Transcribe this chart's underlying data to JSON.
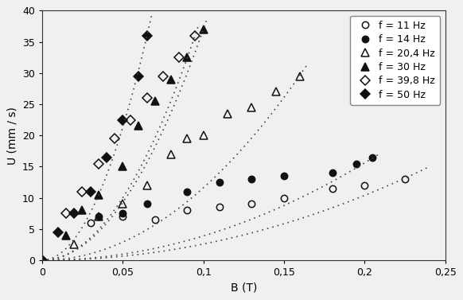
{
  "title": "",
  "xlabel": "B (T)",
  "ylabel": "U (mm / s)",
  "xlim": [
    0,
    0.25
  ],
  "ylim": [
    0,
    40
  ],
  "xticks": [
    0,
    0.05,
    0.1,
    0.15,
    0.2,
    0.25
  ],
  "yticks": [
    0,
    5,
    10,
    15,
    20,
    25,
    30,
    35,
    40
  ],
  "xtick_labels": [
    "0",
    "0,05",
    "0,1",
    "0,15",
    "0,2",
    "0,25"
  ],
  "ytick_labels": [
    "0",
    "5",
    "10",
    "15",
    "20",
    "25",
    "30",
    "35",
    "40"
  ],
  "series": [
    {
      "label": "f = 11 Hz",
      "marker": "o",
      "fillstyle": "none",
      "color": "#111111",
      "x": [
        0.0,
        0.03,
        0.05,
        0.07,
        0.09,
        0.11,
        0.13,
        0.15,
        0.18,
        0.2,
        0.225
      ],
      "y": [
        0.0,
        6.0,
        7.0,
        6.5,
        8.0,
        8.5,
        9.0,
        10.0,
        11.5,
        12.0,
        13.0
      ],
      "fit_coeff": 260.0,
      "fit_xmax": 0.24
    },
    {
      "label": "f = 14 Hz",
      "marker": "o",
      "fillstyle": "full",
      "color": "#111111",
      "x": [
        0.0,
        0.035,
        0.05,
        0.065,
        0.09,
        0.11,
        0.13,
        0.15,
        0.18,
        0.195,
        0.205
      ],
      "y": [
        0.0,
        7.0,
        7.5,
        9.0,
        11.0,
        12.5,
        13.0,
        13.5,
        14.0,
        15.5,
        16.5
      ],
      "fit_coeff": 390.0,
      "fit_xmax": 0.21
    },
    {
      "label": "f = 20,4 Hz",
      "marker": "^",
      "fillstyle": "none",
      "color": "#111111",
      "x": [
        0.0,
        0.02,
        0.035,
        0.05,
        0.065,
        0.08,
        0.09,
        0.1,
        0.115,
        0.13,
        0.145,
        0.16
      ],
      "y": [
        0.0,
        2.5,
        7.0,
        9.0,
        12.0,
        17.0,
        19.5,
        20.0,
        23.5,
        24.5,
        27.0,
        29.5
      ],
      "fit_coeff": 1160.0,
      "fit_xmax": 0.165
    },
    {
      "label": "f = 30 Hz",
      "marker": "^",
      "fillstyle": "full",
      "color": "#111111",
      "x": [
        0.0,
        0.015,
        0.025,
        0.035,
        0.05,
        0.06,
        0.07,
        0.08,
        0.09,
        0.1
      ],
      "y": [
        0.0,
        4.0,
        8.0,
        10.5,
        15.0,
        21.5,
        25.5,
        29.0,
        32.5,
        37.0
      ],
      "fit_coeff": 3700.0,
      "fit_xmax": 0.102
    },
    {
      "label": "f = 39,8 Hz",
      "marker": "D",
      "fillstyle": "none",
      "color": "#111111",
      "x": [
        0.0,
        0.015,
        0.025,
        0.035,
        0.045,
        0.055,
        0.065,
        0.075,
        0.085,
        0.095
      ],
      "y": [
        0.0,
        7.5,
        11.0,
        15.5,
        19.5,
        22.5,
        26.0,
        29.5,
        32.5,
        36.0
      ],
      "fit_coeff": 4000.0,
      "fit_xmax": 0.097
    },
    {
      "label": "f = 50 Hz",
      "marker": "D",
      "fillstyle": "full",
      "color": "#111111",
      "x": [
        0.0,
        0.01,
        0.02,
        0.03,
        0.04,
        0.05,
        0.06,
        0.065
      ],
      "y": [
        0.0,
        4.5,
        7.5,
        11.0,
        16.5,
        22.5,
        29.5,
        36.0
      ],
      "fit_coeff": 8500.0,
      "fit_xmax": 0.068
    }
  ],
  "background_color": "#f0f0f0",
  "legend_fontsize": 9,
  "axis_fontsize": 10,
  "tick_fontsize": 9
}
